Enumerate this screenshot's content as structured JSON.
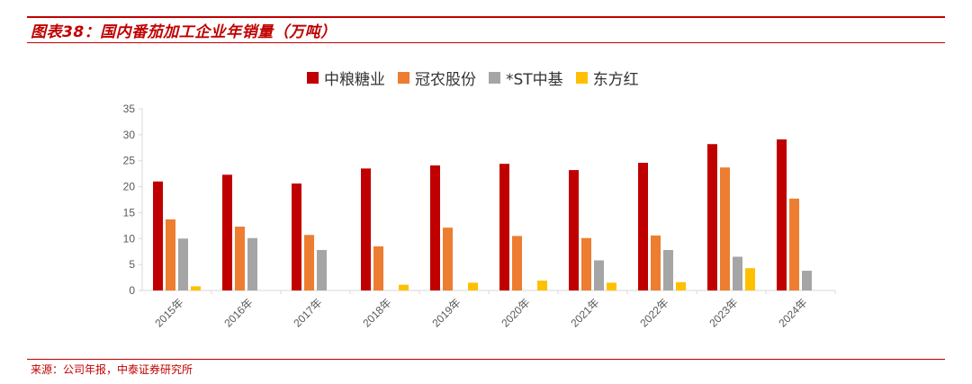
{
  "header": {
    "title": "图表38：国内番茄加工企业年销量（万吨）"
  },
  "footer": {
    "source": "来源：公司年报，中泰证券研究所"
  },
  "colors": {
    "accent": "#c00000"
  },
  "chart_data": {
    "type": "bar",
    "categories": [
      "2015年",
      "2016年",
      "2017年",
      "2018年",
      "2019年",
      "2020年",
      "2021年",
      "2022年",
      "2023年",
      "2024年"
    ],
    "series": [
      {
        "name": "中粮糖业",
        "color": "#c00000",
        "values": [
          21,
          22.3,
          20.6,
          23.5,
          24.1,
          24.4,
          23.2,
          24.6,
          28.2,
          29.1
        ]
      },
      {
        "name": "冠农股份",
        "color": "#ed7d31",
        "values": [
          13.7,
          12.3,
          10.7,
          8.5,
          12.1,
          10.5,
          10.1,
          10.6,
          23.7,
          17.7
        ]
      },
      {
        "name": "*ST中基",
        "color": "#a5a5a5",
        "values": [
          10,
          10.1,
          7.8,
          null,
          null,
          null,
          5.8,
          7.8,
          6.5,
          3.8
        ]
      },
      {
        "name": "东方红",
        "color": "#ffc000",
        "values": [
          0.8,
          null,
          null,
          1.1,
          1.5,
          1.9,
          1.5,
          1.6,
          4.3,
          null
        ]
      }
    ],
    "ylim": [
      0,
      35
    ],
    "yticks": [
      0,
      5,
      10,
      15,
      20,
      25,
      30,
      35
    ],
    "grid": false,
    "legend_position": "top"
  }
}
